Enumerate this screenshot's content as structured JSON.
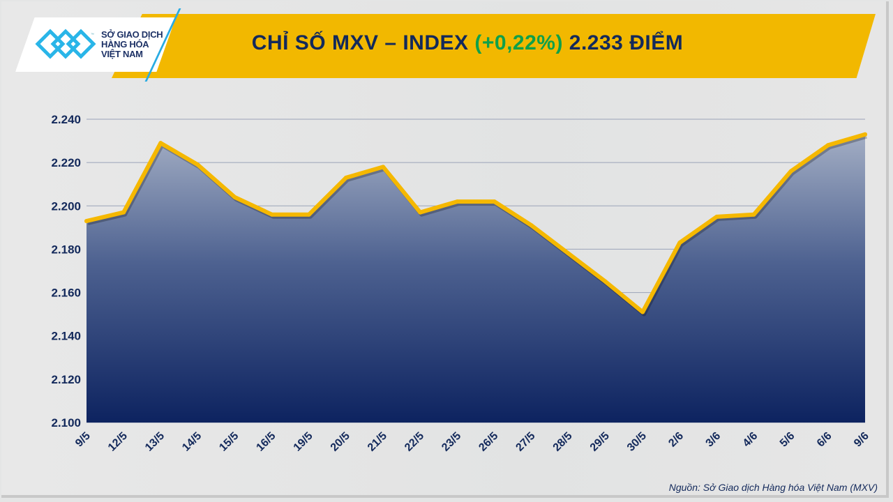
{
  "header": {
    "title_prefix": "CHỈ SỐ MXV – INDEX ",
    "title_change": "(+0,22%)",
    "title_suffix": " 2.233 ĐIỂM",
    "logo_text": [
      "SỞ GIAO DỊCH",
      "HÀNG HÓA",
      "VIỆT NAM"
    ],
    "logo_tm": "™"
  },
  "source": "Nguồn: Sở Giao dịch Hàng hóa Việt Nam (MXV)",
  "colors": {
    "line": "#f5b800",
    "fill_top": "#a3aec4",
    "fill_bottom": "#0d2360",
    "title": "#13295b",
    "positive": "#0fa04a"
  },
  "chart_data": {
    "type": "area",
    "title": "CHỈ SỐ MXV – INDEX (+0,22%) 2.233 ĐIỂM",
    "categories": [
      "9/5",
      "12/5",
      "13/5",
      "14/5",
      "15/5",
      "16/5",
      "19/5",
      "20/5",
      "21/5",
      "22/5",
      "23/5",
      "26/5",
      "27/5",
      "28/5",
      "29/5",
      "30/5",
      "2/6",
      "3/6",
      "4/6",
      "5/6",
      "6/6",
      "9/6"
    ],
    "values": [
      2193,
      2197,
      2229,
      2219,
      2204,
      2196,
      2196,
      2213,
      2218,
      2197,
      2202,
      2202,
      2191,
      2178,
      2165,
      2151,
      2183,
      2195,
      2196,
      2216,
      2228,
      2233
    ],
    "ylim": [
      2100,
      2240
    ],
    "yticks": [
      2100,
      2120,
      2140,
      2160,
      2180,
      2200,
      2220,
      2240
    ],
    "ytick_labels": [
      "2.100",
      "2.120",
      "2.140",
      "2.160",
      "2.180",
      "2.200",
      "2.220",
      "2.240"
    ],
    "grid": true,
    "xlabel": "",
    "ylabel": ""
  }
}
